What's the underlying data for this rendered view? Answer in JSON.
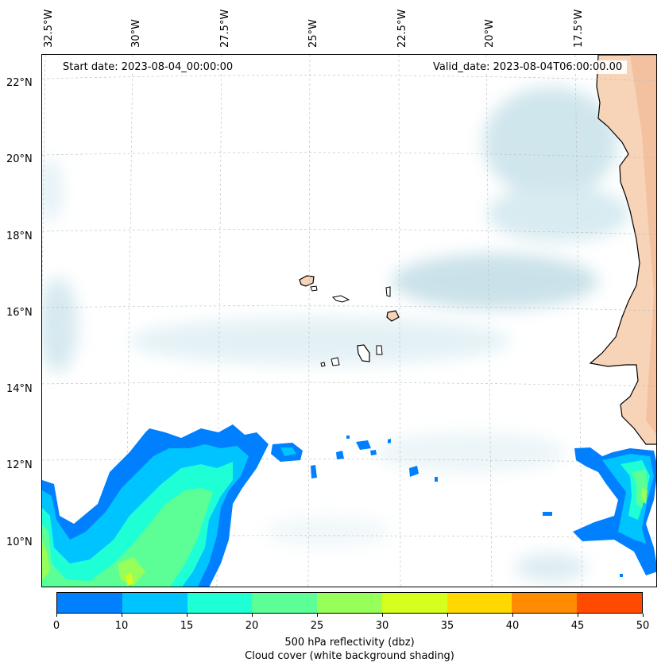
{
  "header": {
    "start_date": "Start date: 2023-08-04_00:00:00",
    "valid_date": "Valid_date: 2023-08-04T06:00:00.00"
  },
  "axes": {
    "lon_labels": [
      "32.5°W",
      "30°W",
      "27.5°W",
      "25°W",
      "22.5°W",
      "20°W",
      "17.5°W"
    ],
    "lat_labels": [
      "22°N",
      "20°N",
      "18°N",
      "16°N",
      "14°N",
      "12°N",
      "10°N"
    ]
  },
  "colorbar": {
    "colors": [
      "#0080ff",
      "#00c4ff",
      "#1effd6",
      "#5cff96",
      "#96ff5a",
      "#d6ff1e",
      "#ffd800",
      "#ff8c00",
      "#ff4a00"
    ],
    "ticks": [
      "0",
      "10",
      "15",
      "20",
      "25",
      "30",
      "35",
      "40",
      "45",
      "50"
    ],
    "label_line1": "500 hPa reflectivity (dbz)",
    "label_line2": "Cloud cover (white background shading)"
  },
  "legend_colors": {
    "cloud": "#bcdde6",
    "land": "#f6c9a8",
    "coast": "#000000"
  }
}
